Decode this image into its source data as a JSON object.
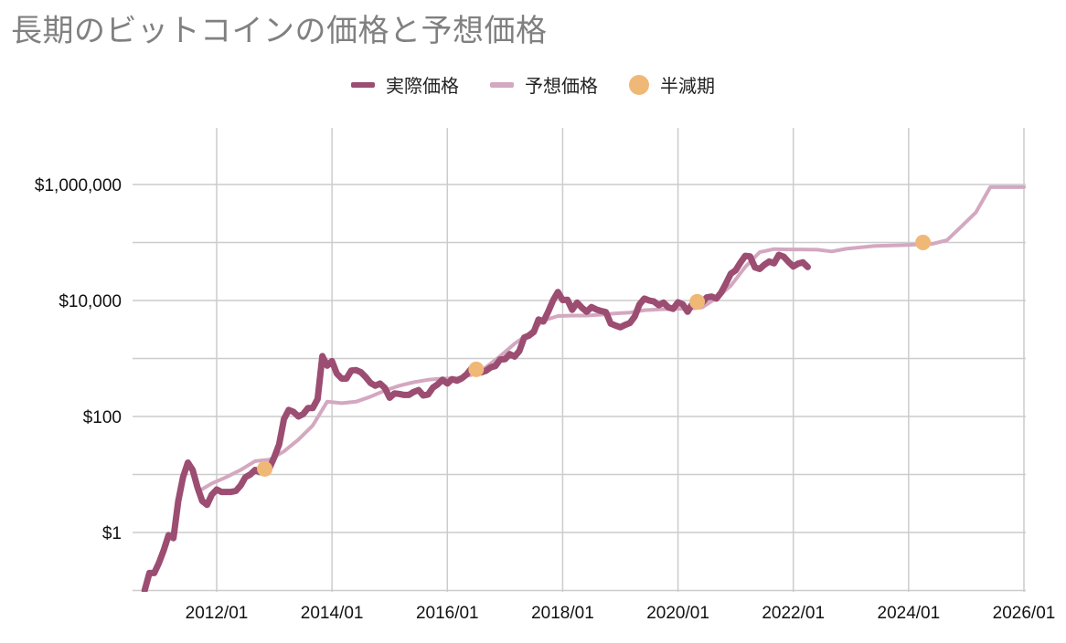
{
  "title": "長期のビットコインの価格と予想価格",
  "legend": {
    "actual": "実際価格",
    "forecast": "予想価格",
    "halving": "半減期"
  },
  "colors": {
    "actual": "#9c4d72",
    "forecast": "#d3a8c0",
    "halving": "#f0b877",
    "grid": "#cccccc"
  },
  "chart_data": {
    "type": "line",
    "title": "長期のビットコインの価格と予想価格",
    "xlabel": "",
    "ylabel": "",
    "yscale": "log",
    "ylim": [
      0.1,
      10000000
    ],
    "xlim": [
      "2010-10",
      "2026-01"
    ],
    "grid": true,
    "legend_position": "top-center",
    "x_ticks": [
      "2012/01",
      "2014/01",
      "2016/01",
      "2018/01",
      "2020/01",
      "2022/01",
      "2024/01",
      "2026/01"
    ],
    "y_ticks": [
      {
        "value": 1,
        "label": "$1"
      },
      {
        "value": 100,
        "label": "$100"
      },
      {
        "value": 10000,
        "label": "$10,000"
      },
      {
        "value": 1000000,
        "label": "$1,000,000"
      }
    ],
    "series": [
      {
        "name": "実際価格",
        "points": [
          [
            "2010-10",
            0.1
          ],
          [
            "2010-11",
            0.2
          ],
          [
            "2010-12",
            0.2
          ],
          [
            "2011-01",
            0.3
          ],
          [
            "2011-02",
            0.5
          ],
          [
            "2011-03",
            0.9
          ],
          [
            "2011-04",
            0.8
          ],
          [
            "2011-05",
            3.5
          ],
          [
            "2011-06",
            9
          ],
          [
            "2011-07",
            16
          ],
          [
            "2011-08",
            12
          ],
          [
            "2011-09",
            6
          ],
          [
            "2011-10",
            3.5
          ],
          [
            "2011-11",
            3
          ],
          [
            "2011-12",
            4.5
          ],
          [
            "2012-01",
            5.5
          ],
          [
            "2012-02",
            5
          ],
          [
            "2012-03",
            5
          ],
          [
            "2012-04",
            5
          ],
          [
            "2012-05",
            5.2
          ],
          [
            "2012-06",
            6.5
          ],
          [
            "2012-07",
            9
          ],
          [
            "2012-08",
            10
          ],
          [
            "2012-09",
            12
          ],
          [
            "2012-10",
            11
          ],
          [
            "2012-11",
            12
          ],
          [
            "2012-12",
            13
          ],
          [
            "2013-01",
            20
          ],
          [
            "2013-02",
            33
          ],
          [
            "2013-03",
            90
          ],
          [
            "2013-04",
            130
          ],
          [
            "2013-05",
            120
          ],
          [
            "2013-06",
            100
          ],
          [
            "2013-07",
            110
          ],
          [
            "2013-08",
            140
          ],
          [
            "2013-09",
            140
          ],
          [
            "2013-10",
            200
          ],
          [
            "2013-11",
            1100
          ],
          [
            "2013-12",
            750
          ],
          [
            "2014-01",
            900
          ],
          [
            "2014-02",
            550
          ],
          [
            "2014-03",
            450
          ],
          [
            "2014-04",
            450
          ],
          [
            "2014-05",
            620
          ],
          [
            "2014-06",
            630
          ],
          [
            "2014-07",
            580
          ],
          [
            "2014-08",
            480
          ],
          [
            "2014-09",
            380
          ],
          [
            "2014-10",
            340
          ],
          [
            "2014-11",
            370
          ],
          [
            "2014-12",
            310
          ],
          [
            "2015-01",
            210
          ],
          [
            "2015-02",
            250
          ],
          [
            "2015-03",
            245
          ],
          [
            "2015-04",
            235
          ],
          [
            "2015-05",
            235
          ],
          [
            "2015-06",
            265
          ],
          [
            "2015-07",
            285
          ],
          [
            "2015-08",
            230
          ],
          [
            "2015-09",
            240
          ],
          [
            "2015-10",
            315
          ],
          [
            "2015-11",
            360
          ],
          [
            "2015-12",
            430
          ],
          [
            "2016-01",
            370
          ],
          [
            "2016-02",
            440
          ],
          [
            "2016-03",
            415
          ],
          [
            "2016-04",
            455
          ],
          [
            "2016-05",
            530
          ],
          [
            "2016-06",
            670
          ],
          [
            "2016-07",
            620
          ],
          [
            "2016-08",
            575
          ],
          [
            "2016-09",
            610
          ],
          [
            "2016-10",
            700
          ],
          [
            "2016-11",
            740
          ],
          [
            "2016-12",
            960
          ],
          [
            "2017-01",
            970
          ],
          [
            "2017-02",
            1190
          ],
          [
            "2017-03",
            1080
          ],
          [
            "2017-04",
            1350
          ],
          [
            "2017-05",
            2300
          ],
          [
            "2017-06",
            2480
          ],
          [
            "2017-07",
            2870
          ],
          [
            "2017-08",
            4700
          ],
          [
            "2017-09",
            4340
          ],
          [
            "2017-10",
            6450
          ],
          [
            "2017-11",
            10000
          ],
          [
            "2017-12",
            14000
          ],
          [
            "2018-01",
            10200
          ],
          [
            "2018-02",
            10300
          ],
          [
            "2018-03",
            6900
          ],
          [
            "2018-04",
            9200
          ],
          [
            "2018-05",
            7500
          ],
          [
            "2018-06",
            6400
          ],
          [
            "2018-07",
            7700
          ],
          [
            "2018-08",
            7000
          ],
          [
            "2018-09",
            6600
          ],
          [
            "2018-10",
            6300
          ],
          [
            "2018-11",
            4000
          ],
          [
            "2018-12",
            3700
          ],
          [
            "2019-01",
            3450
          ],
          [
            "2019-02",
            3800
          ],
          [
            "2019-03",
            4100
          ],
          [
            "2019-04",
            5300
          ],
          [
            "2019-05",
            8600
          ],
          [
            "2019-06",
            10800
          ],
          [
            "2019-07",
            10000
          ],
          [
            "2019-08",
            9600
          ],
          [
            "2019-09",
            8300
          ],
          [
            "2019-10",
            9200
          ],
          [
            "2019-11",
            7600
          ],
          [
            "2019-12",
            7200
          ],
          [
            "2020-01",
            9300
          ],
          [
            "2020-02",
            8600
          ],
          [
            "2020-03",
            6400
          ],
          [
            "2020-04",
            8800
          ],
          [
            "2020-05",
            9500
          ],
          [
            "2020-06",
            9100
          ],
          [
            "2020-07",
            11300
          ],
          [
            "2020-08",
            11700
          ],
          [
            "2020-09",
            10800
          ],
          [
            "2020-10",
            13800
          ],
          [
            "2020-11",
            19700
          ],
          [
            "2020-12",
            29000
          ],
          [
            "2021-01",
            33100
          ],
          [
            "2021-02",
            45000
          ],
          [
            "2021-03",
            58800
          ],
          [
            "2021-04",
            57700
          ],
          [
            "2021-05",
            37300
          ],
          [
            "2021-06",
            35000
          ],
          [
            "2021-07",
            41500
          ],
          [
            "2021-08",
            47100
          ],
          [
            "2021-09",
            43800
          ],
          [
            "2021-10",
            61300
          ],
          [
            "2021-11",
            57000
          ],
          [
            "2021-12",
            46300
          ],
          [
            "2022-01",
            38500
          ],
          [
            "2022-02",
            43200
          ],
          [
            "2022-03",
            45500
          ],
          [
            "2022-04",
            37700
          ]
        ]
      },
      {
        "name": "予想価格",
        "points": [
          [
            "2011-09",
            5
          ],
          [
            "2011-12",
            7
          ],
          [
            "2012-03",
            9
          ],
          [
            "2012-06",
            12
          ],
          [
            "2012-09",
            17
          ],
          [
            "2012-12",
            18
          ],
          [
            "2013-03",
            25
          ],
          [
            "2013-06",
            40
          ],
          [
            "2013-09",
            70
          ],
          [
            "2013-12",
            180
          ],
          [
            "2014-03",
            170
          ],
          [
            "2014-06",
            180
          ],
          [
            "2014-09",
            220
          ],
          [
            "2014-12",
            280
          ],
          [
            "2015-03",
            340
          ],
          [
            "2015-06",
            390
          ],
          [
            "2015-09",
            430
          ],
          [
            "2015-12",
            450
          ],
          [
            "2016-03",
            460
          ],
          [
            "2016-06",
            520
          ],
          [
            "2016-09",
            700
          ],
          [
            "2016-12",
            1100
          ],
          [
            "2017-03",
            1800
          ],
          [
            "2017-06",
            2700
          ],
          [
            "2017-09",
            4500
          ],
          [
            "2017-12",
            5400
          ],
          [
            "2018-03",
            5500
          ],
          [
            "2018-06",
            5500
          ],
          [
            "2018-09",
            5700
          ],
          [
            "2018-12",
            6000
          ],
          [
            "2019-03",
            6200
          ],
          [
            "2019-06",
            6800
          ],
          [
            "2019-09",
            7000
          ],
          [
            "2019-12",
            7200
          ],
          [
            "2020-03",
            7200
          ],
          [
            "2020-06",
            7600
          ],
          [
            "2020-09",
            11000
          ],
          [
            "2020-12",
            18000
          ],
          [
            "2021-03",
            38000
          ],
          [
            "2021-06",
            68000
          ],
          [
            "2021-09",
            77000
          ],
          [
            "2021-12",
            76000
          ],
          [
            "2022-03",
            76000
          ],
          [
            "2022-06",
            75000
          ],
          [
            "2022-09",
            70000
          ],
          [
            "2022-12",
            78000
          ],
          [
            "2023-06",
            87000
          ],
          [
            "2023-12",
            90000
          ],
          [
            "2024-06",
            95000
          ],
          [
            "2024-09",
            110000
          ],
          [
            "2024-12",
            190000
          ],
          [
            "2025-03",
            330000
          ],
          [
            "2025-06",
            900000
          ],
          [
            "2026-01",
            900000
          ]
        ]
      }
    ],
    "halvings": {
      "name": "半減期",
      "points": [
        [
          "2012-11",
          12.5
        ],
        [
          "2016-07",
          650
        ],
        [
          "2020-05",
          9500
        ],
        [
          "2024-04",
          100000
        ]
      ]
    }
  }
}
